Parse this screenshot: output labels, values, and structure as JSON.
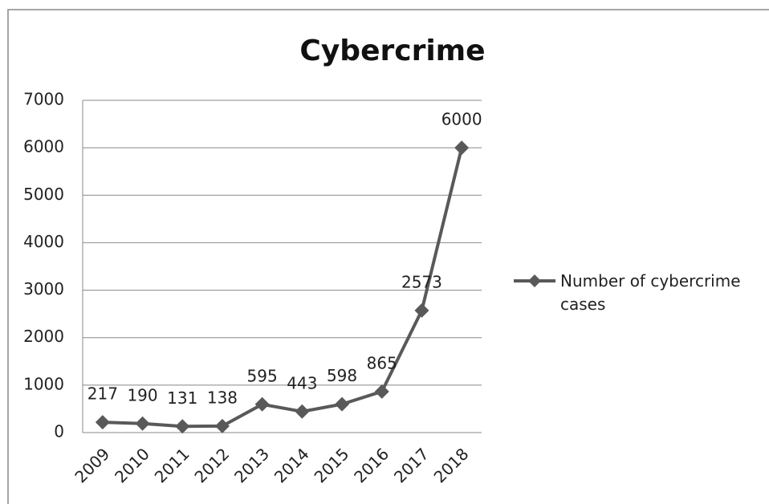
{
  "chart_data": {
    "type": "line",
    "title": "Cybercrime",
    "categories": [
      "2009",
      "2010",
      "2011",
      "2012",
      "2013",
      "2014",
      "2015",
      "2016",
      "2017",
      "2018"
    ],
    "series": [
      {
        "name": "Number of cybercrime cases",
        "color": "#595959",
        "values": [
          217,
          190,
          131,
          138,
          595,
          443,
          598,
          865,
          2573,
          6000
        ]
      }
    ],
    "ylim": [
      0,
      7000
    ],
    "yticks": [
      0,
      1000,
      2000,
      3000,
      4000,
      5000,
      6000,
      7000
    ],
    "grid": true,
    "legend": "right"
  }
}
